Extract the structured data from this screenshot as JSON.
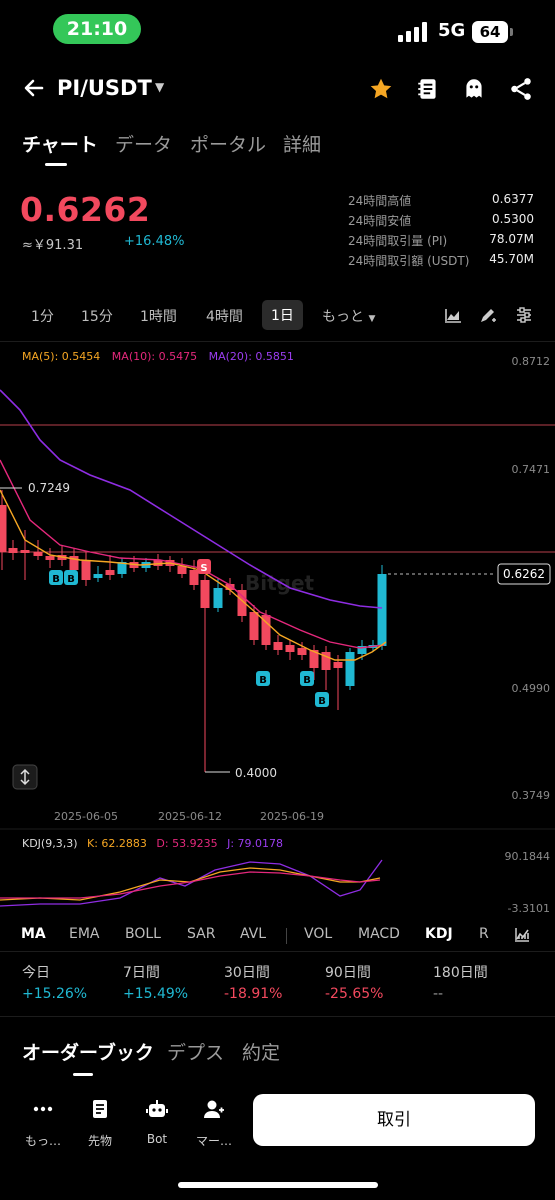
{
  "status": {
    "time": "21:10",
    "network": "5G",
    "battery": "64"
  },
  "header": {
    "pair": "PI/USDT"
  },
  "tabs": [
    "チャート",
    "データ",
    "ポータル",
    "詳細"
  ],
  "price": {
    "last": "0.6262",
    "approx": "≈￥91.31",
    "change": "+16.48%"
  },
  "stats": [
    {
      "label": "24時間高値",
      "value": "0.6377"
    },
    {
      "label": "24時間安値",
      "value": "0.5300"
    },
    {
      "label": "24時間取引量 (PI)",
      "value": "78.07M"
    },
    {
      "label": "24時間取引額 (USDT)",
      "value": "45.70M"
    }
  ],
  "intervals": [
    "1分",
    "15分",
    "1時間",
    "4時間",
    "1日",
    "もっと"
  ],
  "ma_legend": {
    "ma5": "MA(5): 0.5454",
    "ma10": "MA(10): 0.5475",
    "ma20": "MA(20): 0.5851"
  },
  "kdj_legend": {
    "name": "KDJ(9,3,3)",
    "k": "K: 62.2883",
    "d": "D: 53.9235",
    "j": "J: 79.0178"
  },
  "chart_data": {
    "type": "candlestick",
    "y_axis_labels": [
      "0.8712",
      "0.7471",
      "0.6262",
      "0.4990",
      "0.3749"
    ],
    "x_axis_labels": [
      "2025-06-05",
      "2025-06-12",
      "2025-06-19"
    ],
    "annotations": {
      "high_marker": "0.7249",
      "low_marker": "0.4000",
      "current_price_tag": "0.6262",
      "sell_marker": "S",
      "buy_marker": "B"
    },
    "kdj_axis_labels": [
      "90.1844",
      "-3.3101"
    ],
    "colors": {
      "up": "#20b8d2",
      "down": "#f2495e",
      "ma5": "#f5a623",
      "ma10": "#e4287c",
      "ma20": "#8e2de2"
    }
  },
  "indicators": [
    "MA",
    "EMA",
    "BOLL",
    "SAR",
    "AVL",
    "VOL",
    "MACD",
    "KDJ",
    "R"
  ],
  "performance": [
    {
      "label": "今日",
      "value": "+15.26%"
    },
    {
      "label": "7日間",
      "value": "+15.49%"
    },
    {
      "label": "30日間",
      "value": "-18.91%"
    },
    {
      "label": "90日間",
      "value": "-25.65%"
    },
    {
      "label": "180日間",
      "value": "--"
    }
  ],
  "orderbook_tabs": [
    "オーダーブック",
    "デプス",
    "約定"
  ],
  "bottom_bar": {
    "more": "もっ…",
    "futures": "先物",
    "bot": "Bot",
    "margin": "マー…",
    "trade": "取引"
  }
}
